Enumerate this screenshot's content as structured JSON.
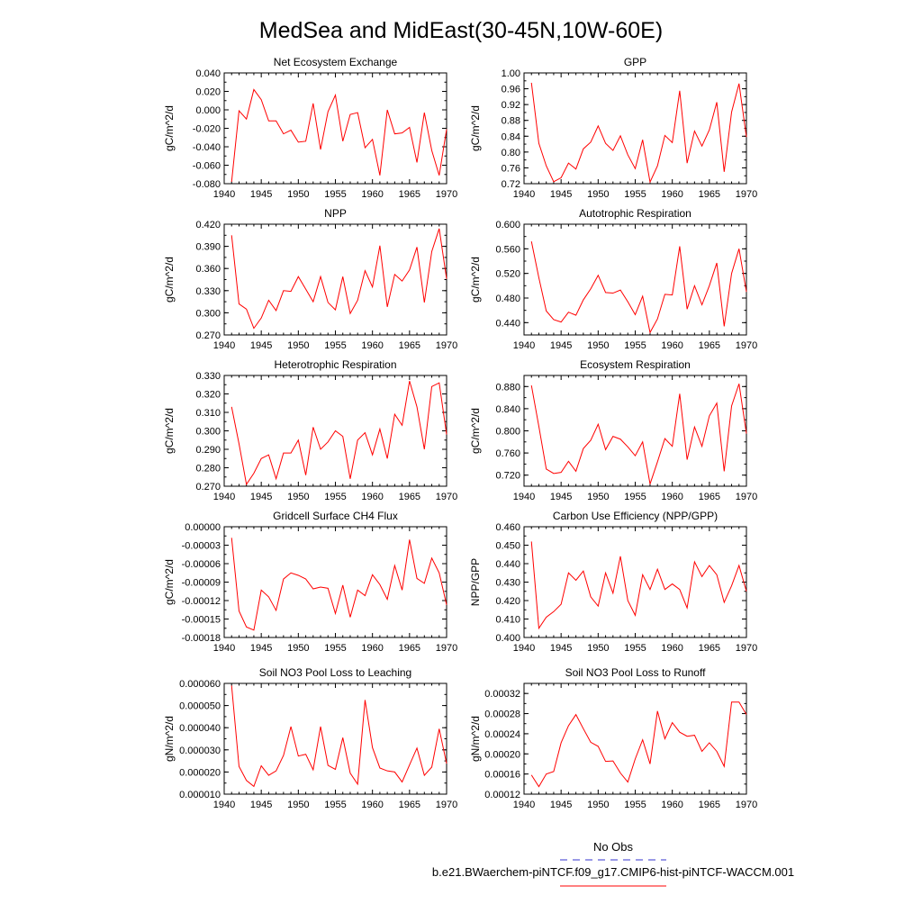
{
  "figure_title": "MedSea and MidEast(30-45N,10W-60E)",
  "colors": {
    "series": "#ff0000",
    "obs": "#3333cc",
    "axis": "#000000"
  },
  "legend": {
    "obs_label": "No Obs",
    "model_label": "b.e21.BWaerchem-piNTCF.f09_g17.CMIP6-hist-piNTCF-WACCM.001"
  },
  "chart_data": [
    {
      "type": "line",
      "title": "Net Ecosystem Exchange",
      "ylabel": "gC/m^2/d",
      "xlim": [
        1940,
        1970
      ],
      "ylim": [
        -0.08,
        0.04
      ],
      "xticks": [
        1940,
        1945,
        1950,
        1955,
        1960,
        1965,
        1970
      ],
      "yticks": [
        "-0.080",
        "-0.060",
        "-0.040",
        "-0.020",
        "0.000",
        "0.020",
        "0.040"
      ],
      "yticks_values": [
        -0.08,
        -0.06,
        -0.04,
        -0.02,
        0.0,
        0.02,
        0.04
      ],
      "x": [
        1941,
        1942,
        1943,
        1944,
        1945,
        1946,
        1947,
        1948,
        1949,
        1950,
        1951,
        1952,
        1953,
        1954,
        1955,
        1956,
        1957,
        1958,
        1959,
        1960,
        1961,
        1962,
        1963,
        1964,
        1965,
        1966,
        1967,
        1968,
        1969,
        1970
      ],
      "series": [
        {
          "values": [
            -0.078,
            -0.001,
            -0.01,
            0.022,
            0.011,
            -0.012,
            -0.012,
            -0.026,
            -0.022,
            -0.035,
            -0.034,
            0.007,
            -0.043,
            -0.002,
            0.016,
            -0.034,
            -0.005,
            -0.003,
            -0.041,
            -0.032,
            -0.071,
            0.0,
            -0.026,
            -0.025,
            -0.019,
            -0.057,
            -0.003,
            -0.044,
            -0.071,
            -0.021
          ]
        }
      ]
    },
    {
      "type": "line",
      "title": "GPP",
      "ylabel": "gC/m^2/d",
      "xlim": [
        1940,
        1970
      ],
      "ylim": [
        0.72,
        1.0
      ],
      "xticks": [
        1940,
        1945,
        1950,
        1955,
        1960,
        1965,
        1970
      ],
      "yticks": [
        "0.72",
        "0.76",
        "0.80",
        "0.84",
        "0.88",
        "0.92",
        "0.96",
        "1.00"
      ],
      "yticks_values": [
        0.72,
        0.76,
        0.8,
        0.84,
        0.88,
        0.92,
        0.96,
        1.0
      ],
      "x": [
        1941,
        1942,
        1943,
        1944,
        1945,
        1946,
        1947,
        1948,
        1949,
        1950,
        1951,
        1952,
        1953,
        1954,
        1955,
        1956,
        1957,
        1958,
        1959,
        1960,
        1961,
        1962,
        1963,
        1964,
        1965,
        1966,
        1967,
        1968,
        1969,
        1970
      ],
      "series": [
        {
          "values": [
            0.975,
            0.822,
            0.765,
            0.725,
            0.735,
            0.772,
            0.757,
            0.808,
            0.825,
            0.866,
            0.822,
            0.804,
            0.841,
            0.793,
            0.758,
            0.831,
            0.724,
            0.765,
            0.842,
            0.824,
            0.955,
            0.772,
            0.853,
            0.815,
            0.856,
            0.926,
            0.75,
            0.901,
            0.973,
            0.838
          ]
        }
      ]
    },
    {
      "type": "line",
      "title": "NPP",
      "ylabel": "gC/m^2/d",
      "xlim": [
        1940,
        1970
      ],
      "ylim": [
        0.27,
        0.42
      ],
      "xticks": [
        1940,
        1945,
        1950,
        1955,
        1960,
        1965,
        1970
      ],
      "yticks": [
        "0.270",
        "0.300",
        "0.330",
        "0.360",
        "0.390",
        "0.420"
      ],
      "yticks_values": [
        0.27,
        0.3,
        0.33,
        0.36,
        0.39,
        0.42
      ],
      "x": [
        1941,
        1942,
        1943,
        1944,
        1945,
        1946,
        1947,
        1948,
        1949,
        1950,
        1951,
        1952,
        1953,
        1954,
        1955,
        1956,
        1957,
        1958,
        1959,
        1960,
        1961,
        1962,
        1963,
        1964,
        1965,
        1966,
        1967,
        1968,
        1969,
        1970
      ],
      "series": [
        {
          "values": [
            0.405,
            0.312,
            0.305,
            0.279,
            0.293,
            0.317,
            0.303,
            0.33,
            0.329,
            0.349,
            0.332,
            0.315,
            0.349,
            0.314,
            0.304,
            0.349,
            0.299,
            0.317,
            0.357,
            0.335,
            0.391,
            0.308,
            0.352,
            0.343,
            0.358,
            0.389,
            0.314,
            0.383,
            0.414,
            0.346
          ]
        }
      ]
    },
    {
      "type": "line",
      "title": "Autotrophic Respiration",
      "ylabel": "gC/m^2/d",
      "xlim": [
        1940,
        1970
      ],
      "ylim": [
        0.42,
        0.6
      ],
      "xticks": [
        1940,
        1945,
        1950,
        1955,
        1960,
        1965,
        1970
      ],
      "yticks": [
        "0.440",
        "0.480",
        "0.520",
        "0.560",
        "0.600"
      ],
      "yticks_values": [
        0.44,
        0.48,
        0.52,
        0.56,
        0.6
      ],
      "x": [
        1941,
        1942,
        1943,
        1944,
        1945,
        1946,
        1947,
        1948,
        1949,
        1950,
        1951,
        1952,
        1953,
        1954,
        1955,
        1956,
        1957,
        1958,
        1959,
        1960,
        1961,
        1962,
        1963,
        1964,
        1965,
        1966,
        1967,
        1968,
        1969,
        1970
      ],
      "series": [
        {
          "values": [
            0.572,
            0.513,
            0.459,
            0.445,
            0.441,
            0.457,
            0.452,
            0.477,
            0.495,
            0.517,
            0.489,
            0.488,
            0.493,
            0.474,
            0.453,
            0.483,
            0.424,
            0.446,
            0.486,
            0.485,
            0.564,
            0.462,
            0.5,
            0.469,
            0.5,
            0.537,
            0.434,
            0.52,
            0.56,
            0.49
          ]
        }
      ]
    },
    {
      "type": "line",
      "title": "Heterotrophic Respiration",
      "ylabel": "gC/m^2/d",
      "xlim": [
        1940,
        1970
      ],
      "ylim": [
        0.27,
        0.33
      ],
      "xticks": [
        1940,
        1945,
        1950,
        1955,
        1960,
        1965,
        1970
      ],
      "yticks": [
        "0.270",
        "0.280",
        "0.290",
        "0.300",
        "0.310",
        "0.320",
        "0.330"
      ],
      "yticks_values": [
        0.27,
        0.28,
        0.29,
        0.3,
        0.31,
        0.32,
        0.33
      ],
      "x": [
        1941,
        1942,
        1943,
        1944,
        1945,
        1946,
        1947,
        1948,
        1949,
        1950,
        1951,
        1952,
        1953,
        1954,
        1955,
        1956,
        1957,
        1958,
        1959,
        1960,
        1961,
        1962,
        1963,
        1964,
        1965,
        1966,
        1967,
        1968,
        1969,
        1970
      ],
      "series": [
        {
          "values": [
            0.313,
            0.293,
            0.271,
            0.277,
            0.285,
            0.287,
            0.274,
            0.288,
            0.288,
            0.295,
            0.276,
            0.302,
            0.29,
            0.294,
            0.3,
            0.297,
            0.274,
            0.295,
            0.299,
            0.287,
            0.301,
            0.285,
            0.309,
            0.303,
            0.327,
            0.313,
            0.29,
            0.324,
            0.326,
            0.298
          ]
        }
      ]
    },
    {
      "type": "line",
      "title": "Ecosystem Respiration",
      "ylabel": "gC/m^2/d",
      "xlim": [
        1940,
        1970
      ],
      "ylim": [
        0.7,
        0.9
      ],
      "xticks": [
        1940,
        1945,
        1950,
        1955,
        1960,
        1965,
        1970
      ],
      "yticks": [
        "0.720",
        "0.760",
        "0.800",
        "0.840",
        "0.880"
      ],
      "yticks_values": [
        0.72,
        0.76,
        0.8,
        0.84,
        0.88
      ],
      "x": [
        1941,
        1942,
        1943,
        1944,
        1945,
        1946,
        1947,
        1948,
        1949,
        1950,
        1951,
        1952,
        1953,
        1954,
        1955,
        1956,
        1957,
        1958,
        1959,
        1960,
        1961,
        1962,
        1963,
        1964,
        1965,
        1966,
        1967,
        1968,
        1969,
        1970
      ],
      "series": [
        {
          "values": [
            0.882,
            0.808,
            0.731,
            0.723,
            0.725,
            0.745,
            0.727,
            0.768,
            0.783,
            0.812,
            0.766,
            0.79,
            0.785,
            0.771,
            0.755,
            0.78,
            0.704,
            0.744,
            0.786,
            0.772,
            0.867,
            0.748,
            0.807,
            0.772,
            0.827,
            0.85,
            0.727,
            0.845,
            0.885,
            0.795
          ]
        }
      ]
    },
    {
      "type": "line",
      "title": "Gridcell Surface CH4 Flux",
      "ylabel": "gC/m^2/d",
      "xlim": [
        1940,
        1970
      ],
      "ylim": [
        -0.00018,
        0.0
      ],
      "xticks": [
        1940,
        1945,
        1950,
        1955,
        1960,
        1965,
        1970
      ],
      "yticks": [
        "-0.00018",
        "-0.00015",
        "-0.00012",
        "-0.00009",
        "-0.00006",
        "-0.00003",
        "0.00000"
      ],
      "yticks_values": [
        -0.00018,
        -0.00015,
        -0.00012,
        -9e-05,
        -6e-05,
        -3e-05,
        0.0
      ],
      "x": [
        1941,
        1942,
        1943,
        1944,
        1945,
        1946,
        1947,
        1948,
        1949,
        1950,
        1951,
        1952,
        1953,
        1954,
        1955,
        1956,
        1957,
        1958,
        1959,
        1960,
        1961,
        1962,
        1963,
        1964,
        1965,
        1966,
        1967,
        1968,
        1969,
        1970
      ],
      "series": [
        {
          "values": [
            -1.8e-05,
            -0.000137,
            -0.000163,
            -0.000168,
            -0.000103,
            -0.000114,
            -0.000136,
            -8.5e-05,
            -7.5e-05,
            -7.9e-05,
            -8.5e-05,
            -0.000101,
            -9.8e-05,
            -0.0001,
            -0.000141,
            -9.5e-05,
            -0.000147,
            -0.000103,
            -0.000112,
            -7.8e-05,
            -9.4e-05,
            -0.000118,
            -6.3e-05,
            -0.000103,
            -2.1e-05,
            -8.4e-05,
            -9.2e-05,
            -5.1e-05,
            -7.5e-05,
            -0.000127
          ]
        }
      ]
    },
    {
      "type": "line",
      "title": "Carbon Use Efficiency (NPP/GPP)",
      "ylabel": "NPP/GPP",
      "xlim": [
        1940,
        1970
      ],
      "ylim": [
        0.4,
        0.46
      ],
      "xticks": [
        1940,
        1945,
        1950,
        1955,
        1960,
        1965,
        1970
      ],
      "yticks": [
        "0.400",
        "0.410",
        "0.420",
        "0.430",
        "0.440",
        "0.450",
        "0.460"
      ],
      "yticks_values": [
        0.4,
        0.41,
        0.42,
        0.43,
        0.44,
        0.45,
        0.46
      ],
      "x": [
        1941,
        1942,
        1943,
        1944,
        1945,
        1946,
        1947,
        1948,
        1949,
        1950,
        1951,
        1952,
        1953,
        1954,
        1955,
        1956,
        1957,
        1958,
        1959,
        1960,
        1961,
        1962,
        1963,
        1964,
        1965,
        1966,
        1967,
        1968,
        1969,
        1970
      ],
      "series": [
        {
          "values": [
            0.452,
            0.405,
            0.411,
            0.414,
            0.418,
            0.435,
            0.431,
            0.436,
            0.422,
            0.417,
            0.435,
            0.424,
            0.444,
            0.42,
            0.412,
            0.434,
            0.426,
            0.437,
            0.426,
            0.429,
            0.426,
            0.416,
            0.441,
            0.433,
            0.439,
            0.434,
            0.419,
            0.428,
            0.439,
            0.425
          ]
        }
      ]
    },
    {
      "type": "line",
      "title": "Soil NO3 Pool Loss to Leaching",
      "ylabel": "gN/m^2/d",
      "xlim": [
        1940,
        1970
      ],
      "ylim": [
        1e-05,
        6e-05
      ],
      "xticks": [
        1940,
        1945,
        1950,
        1955,
        1960,
        1965,
        1970
      ],
      "yticks": [
        "0.000010",
        "0.000020",
        "0.000030",
        "0.000040",
        "0.000050",
        "0.000060"
      ],
      "yticks_values": [
        1e-05,
        2e-05,
        3e-05,
        4e-05,
        5e-05,
        6e-05
      ],
      "x": [
        1941,
        1942,
        1943,
        1944,
        1945,
        1946,
        1947,
        1948,
        1949,
        1950,
        1951,
        1952,
        1953,
        1954,
        1955,
        1956,
        1957,
        1958,
        1959,
        1960,
        1961,
        1962,
        1963,
        1964,
        1965,
        1966,
        1967,
        1968,
        1969,
        1970
      ],
      "series": [
        {
          "values": [
            5.9e-05,
            2.25e-05,
            1.62e-05,
            1.35e-05,
            2.28e-05,
            1.85e-05,
            2.05e-05,
            2.75e-05,
            4.05e-05,
            2.72e-05,
            2.8e-05,
            2.1e-05,
            4.05e-05,
            2.3e-05,
            2.12e-05,
            3.55e-05,
            1.95e-05,
            1.45e-05,
            5.25e-05,
            3.1e-05,
            2.18e-05,
            2.05e-05,
            2e-05,
            1.55e-05,
            2.32e-05,
            3.08e-05,
            1.85e-05,
            2.22e-05,
            3.95e-05,
            2.38e-05
          ]
        }
      ]
    },
    {
      "type": "line",
      "title": "Soil NO3 Pool Loss to Runoff",
      "ylabel": "gN/m^2/d",
      "xlim": [
        1940,
        1970
      ],
      "ylim": [
        0.00012,
        0.00034
      ],
      "xticks": [
        1940,
        1945,
        1950,
        1955,
        1960,
        1965,
        1970
      ],
      "yticks": [
        "0.00012",
        "0.00016",
        "0.00020",
        "0.00024",
        "0.00028",
        "0.00032"
      ],
      "yticks_values": [
        0.00012,
        0.00016,
        0.0002,
        0.00024,
        0.00028,
        0.00032
      ],
      "x": [
        1941,
        1942,
        1943,
        1944,
        1945,
        1946,
        1947,
        1948,
        1949,
        1950,
        1951,
        1952,
        1953,
        1954,
        1955,
        1956,
        1957,
        1958,
        1959,
        1960,
        1961,
        1962,
        1963,
        1964,
        1965,
        1966,
        1967,
        1968,
        1969,
        1970
      ],
      "series": [
        {
          "values": [
            0.000158,
            0.000135,
            0.00016,
            0.000165,
            0.000222,
            0.000256,
            0.000278,
            0.00025,
            0.000223,
            0.000215,
            0.000185,
            0.000186,
            0.000162,
            0.000144,
            0.00019,
            0.000228,
            0.00018,
            0.000285,
            0.00023,
            0.000262,
            0.000243,
            0.000235,
            0.000237,
            0.000205,
            0.000222,
            0.000205,
            0.000175,
            0.000303,
            0.000303,
            0.000278
          ]
        }
      ]
    }
  ]
}
